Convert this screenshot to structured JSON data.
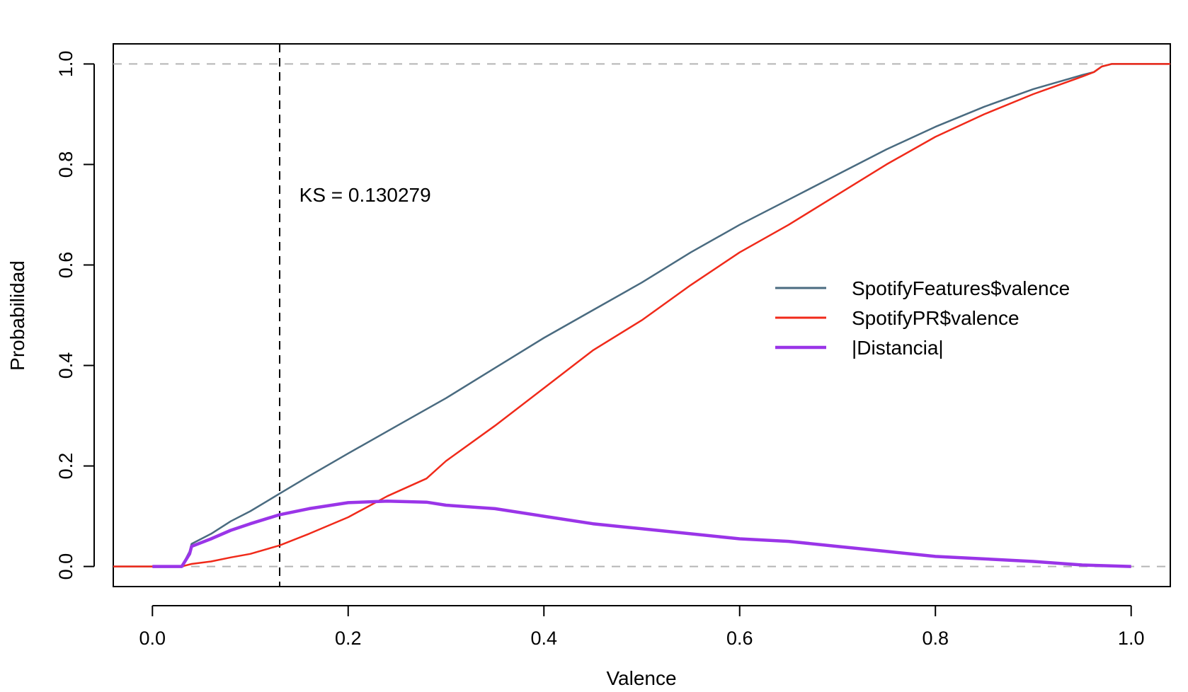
{
  "chart_data": {
    "type": "line",
    "title": "",
    "xlabel": "Valence",
    "ylabel": "Probabilidad",
    "xlim": [
      -0.04,
      1.04
    ],
    "ylim": [
      -0.04,
      1.04
    ],
    "x_ticks": [
      "0.0",
      "0.2",
      "0.4",
      "0.6",
      "0.8",
      "1.0"
    ],
    "y_ticks": [
      "0.0",
      "0.2",
      "0.4",
      "0.6",
      "0.8",
      "1.0"
    ],
    "grid": false,
    "legend_position": "right",
    "reference_lines": {
      "horizontal_dashed": [
        0,
        1
      ],
      "vertical_dashed_x": 0.13
    },
    "annotation": {
      "text": "KS = 0.130279",
      "x": 0.15,
      "y": 0.74
    },
    "series": [
      {
        "name": "SpotifyFeatures$valence",
        "color": "#4a6b80",
        "x": [
          -0.04,
          0.0,
          0.03,
          0.038,
          0.04,
          0.06,
          0.08,
          0.1,
          0.13,
          0.16,
          0.2,
          0.25,
          0.3,
          0.35,
          0.4,
          0.45,
          0.5,
          0.55,
          0.6,
          0.65,
          0.7,
          0.75,
          0.8,
          0.85,
          0.9,
          0.95,
          0.962,
          0.97,
          0.98,
          1.0,
          1.04
        ],
        "y": [
          0.0,
          0.0,
          0.0,
          0.03,
          0.045,
          0.065,
          0.09,
          0.11,
          0.145,
          0.18,
          0.225,
          0.28,
          0.335,
          0.395,
          0.455,
          0.51,
          0.565,
          0.625,
          0.68,
          0.73,
          0.78,
          0.83,
          0.875,
          0.915,
          0.95,
          0.978,
          0.984,
          0.995,
          1.0,
          1.0,
          1.0
        ]
      },
      {
        "name": "SpotifyPR$valence",
        "color": "#f02a1a",
        "x": [
          -0.04,
          0.0,
          0.03,
          0.04,
          0.06,
          0.08,
          0.1,
          0.13,
          0.16,
          0.2,
          0.24,
          0.28,
          0.3,
          0.35,
          0.4,
          0.45,
          0.5,
          0.55,
          0.6,
          0.65,
          0.7,
          0.75,
          0.8,
          0.85,
          0.9,
          0.95,
          0.962,
          0.97,
          0.98,
          1.0,
          1.04
        ],
        "y": [
          0.0,
          0.0,
          0.0,
          0.005,
          0.01,
          0.018,
          0.025,
          0.042,
          0.065,
          0.098,
          0.14,
          0.175,
          0.21,
          0.28,
          0.355,
          0.43,
          0.49,
          0.56,
          0.625,
          0.68,
          0.74,
          0.8,
          0.855,
          0.9,
          0.94,
          0.975,
          0.984,
          0.995,
          1.0,
          1.0,
          1.0
        ]
      },
      {
        "name": "|Distancia|",
        "color": "#9a35e8",
        "x": [
          0.0,
          0.03,
          0.038,
          0.04,
          0.06,
          0.08,
          0.1,
          0.13,
          0.16,
          0.2,
          0.24,
          0.28,
          0.3,
          0.35,
          0.4,
          0.45,
          0.5,
          0.55,
          0.6,
          0.65,
          0.7,
          0.75,
          0.8,
          0.85,
          0.9,
          0.95,
          1.0
        ],
        "y": [
          0.0,
          0.0,
          0.025,
          0.04,
          0.055,
          0.072,
          0.085,
          0.103,
          0.115,
          0.127,
          0.13,
          0.128,
          0.122,
          0.115,
          0.1,
          0.085,
          0.075,
          0.065,
          0.055,
          0.05,
          0.04,
          0.03,
          0.02,
          0.015,
          0.01,
          0.003,
          0.0
        ]
      }
    ]
  }
}
